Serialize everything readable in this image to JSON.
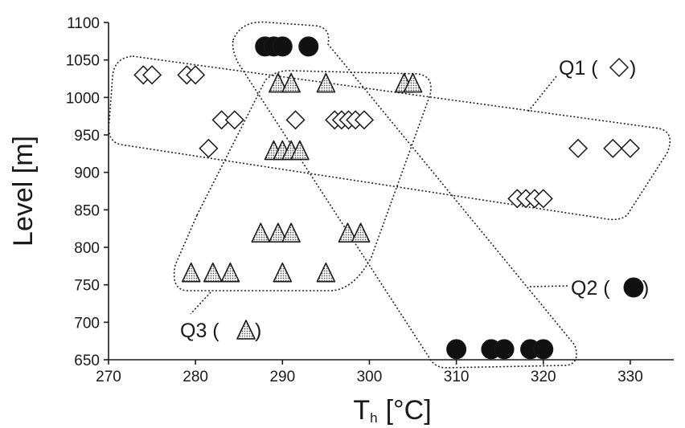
{
  "chart_data": {
    "type": "scatter",
    "title": "",
    "xlabel": "T",
    "xlabel_subscript": "h",
    "xlabel_unit": "[°C]",
    "ylabel": "Level [m]",
    "xlim": [
      270,
      335
    ],
    "ylim": [
      650,
      1100
    ],
    "x_ticks": [
      270,
      280,
      290,
      300,
      310,
      320,
      330
    ],
    "y_ticks": [
      650,
      700,
      750,
      800,
      850,
      900,
      950,
      1000,
      1050,
      1100
    ],
    "grid": false,
    "series": [
      {
        "name": "Q1",
        "marker": "diamond",
        "points": [
          {
            "x": 274.0,
            "y": 1030
          },
          {
            "x": 275.0,
            "y": 1030
          },
          {
            "x": 279.0,
            "y": 1030
          },
          {
            "x": 280.0,
            "y": 1030
          },
          {
            "x": 281.5,
            "y": 932
          },
          {
            "x": 283.0,
            "y": 970
          },
          {
            "x": 284.5,
            "y": 970
          },
          {
            "x": 291.5,
            "y": 970
          },
          {
            "x": 296.0,
            "y": 970
          },
          {
            "x": 296.8,
            "y": 970
          },
          {
            "x": 297.6,
            "y": 970
          },
          {
            "x": 298.4,
            "y": 970
          },
          {
            "x": 299.4,
            "y": 970
          },
          {
            "x": 317.0,
            "y": 865
          },
          {
            "x": 318.0,
            "y": 865
          },
          {
            "x": 319.0,
            "y": 865
          },
          {
            "x": 320.0,
            "y": 865
          },
          {
            "x": 324.0,
            "y": 932
          },
          {
            "x": 328.0,
            "y": 932
          },
          {
            "x": 330.0,
            "y": 932
          }
        ]
      },
      {
        "name": "Q2",
        "marker": "circle",
        "points": [
          {
            "x": 288.0,
            "y": 1068
          },
          {
            "x": 289.0,
            "y": 1068
          },
          {
            "x": 290.0,
            "y": 1068
          },
          {
            "x": 293.0,
            "y": 1068
          },
          {
            "x": 310.0,
            "y": 664
          },
          {
            "x": 314.0,
            "y": 664
          },
          {
            "x": 315.5,
            "y": 664
          },
          {
            "x": 318.5,
            "y": 664
          },
          {
            "x": 320.0,
            "y": 664
          }
        ]
      },
      {
        "name": "Q3",
        "marker": "triangle",
        "points": [
          {
            "x": 289.5,
            "y": 1018
          },
          {
            "x": 291.0,
            "y": 1018
          },
          {
            "x": 295.0,
            "y": 1018
          },
          {
            "x": 304.0,
            "y": 1018
          },
          {
            "x": 305.0,
            "y": 1018
          },
          {
            "x": 289.0,
            "y": 928
          },
          {
            "x": 290.0,
            "y": 928
          },
          {
            "x": 291.0,
            "y": 928
          },
          {
            "x": 292.0,
            "y": 928
          },
          {
            "x": 287.5,
            "y": 818
          },
          {
            "x": 289.5,
            "y": 818
          },
          {
            "x": 291.0,
            "y": 818
          },
          {
            "x": 297.5,
            "y": 818
          },
          {
            "x": 299.0,
            "y": 818
          },
          {
            "x": 279.5,
            "y": 765
          },
          {
            "x": 282.0,
            "y": 765
          },
          {
            "x": 284.0,
            "y": 765
          },
          {
            "x": 290.0,
            "y": 765
          },
          {
            "x": 295.0,
            "y": 765
          }
        ]
      }
    ],
    "annotations": [
      {
        "name": "Q1",
        "text": "Q1 (",
        "marker": "diamond",
        "close": ")"
      },
      {
        "name": "Q2",
        "text": "Q2 (",
        "marker": "circle",
        "close": ")"
      },
      {
        "name": "Q3",
        "text": "Q3 (",
        "marker": "triangle",
        "close": ")"
      }
    ],
    "colors": {
      "diamond_fill": "#ffffff",
      "circle_fill": "#111111",
      "triangle_fill": "#b9b9b9",
      "stroke": "#1a1a1a"
    }
  }
}
